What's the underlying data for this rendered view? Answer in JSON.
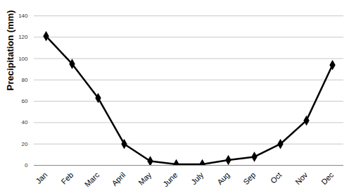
{
  "chart_data": {
    "type": "line",
    "categories": [
      "Jan",
      "Feb",
      "Marc",
      "April",
      "May",
      "June",
      "July",
      "Aug",
      "Sep",
      "Oct",
      "Nov",
      "Dec"
    ],
    "values": [
      121,
      95,
      63,
      20,
      4,
      1,
      1,
      5,
      8,
      20,
      42,
      94
    ],
    "ylabel": "Precipitation (mm)",
    "ylim": [
      0,
      140
    ],
    "yticks": [
      0,
      20,
      40,
      60,
      80,
      100,
      120,
      140
    ],
    "grid": true,
    "color": "#000000",
    "marker": "diamond"
  }
}
